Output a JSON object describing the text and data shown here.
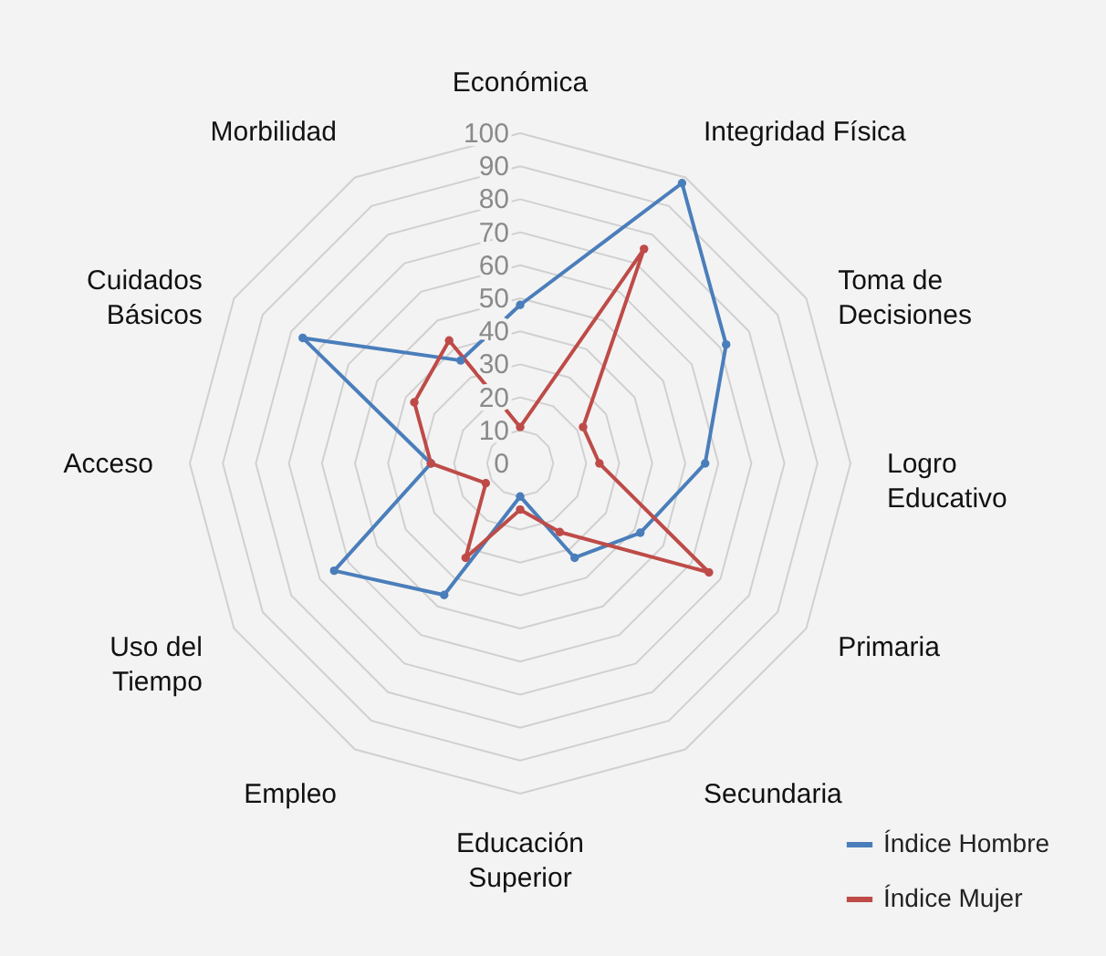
{
  "chart_data": {
    "type": "radar",
    "categories": [
      "Económica",
      "Integridad Física",
      "Toma de\nDecisiones",
      "Logro\nEducativo",
      "Primaria",
      "Secundaria",
      "Educación\nSuperior",
      "Empleo",
      "Uso del\nTiempo",
      "Acceso",
      "Cuidados\nBásicos",
      "Morbilidad"
    ],
    "series": [
      {
        "name": "Índice Hombre",
        "color": "#4a7ebb",
        "values": [
          48,
          98,
          72,
          56,
          42,
          33,
          10,
          46,
          65,
          27,
          76,
          36
        ]
      },
      {
        "name": "Índice Mujer",
        "color": "#be4b48",
        "values": [
          11,
          75,
          22,
          24,
          66,
          24,
          14,
          33,
          12,
          27,
          37,
          43
        ]
      }
    ],
    "ylim": [
      0,
      100
    ],
    "yticks": [
      0,
      10,
      20,
      30,
      40,
      50,
      60,
      70,
      80,
      90,
      100
    ],
    "grid": true,
    "legend": "bottom right",
    "marker": "circle"
  }
}
